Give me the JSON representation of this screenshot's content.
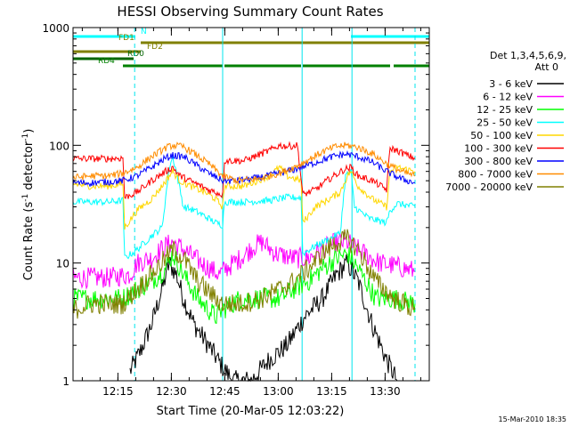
{
  "chart_data": {
    "type": "line",
    "title": "HESSI Observing Summary Count Rates",
    "xlabel": "Start Time (20-Mar-05 12:03:22)",
    "ylabel_main": "Count Rate (s",
    "ylabel_sup1": "-1",
    "ylabel_mid": " detector",
    "ylabel_sup2": "-1",
    "ylabel_end": ")",
    "yscale": "log",
    "ylim": [
      1,
      1000
    ],
    "xlim_minutes": [
      0,
      100
    ],
    "x_ticks": [
      {
        "t": 12.6,
        "label": "12:15"
      },
      {
        "t": 27.6,
        "label": "12:30"
      },
      {
        "t": 42.6,
        "label": "12:45"
      },
      {
        "t": 57.6,
        "label": "13:00"
      },
      {
        "t": 72.6,
        "label": "13:15"
      },
      {
        "t": 87.6,
        "label": "13:30"
      }
    ],
    "y_ticks": [
      {
        "v": 1,
        "label": "1"
      },
      {
        "v": 10,
        "label": "10"
      },
      {
        "v": 100,
        "label": "100"
      },
      {
        "v": 1000,
        "label": "1000"
      }
    ],
    "legend_header": [
      "Det 1,3,4,5,6,9,",
      "Att 0"
    ],
    "timestamp": "15-Mar-2010 18:35",
    "flag_bars": [
      {
        "name": "N",
        "color": "#00ffff",
        "segments": [
          [
            0,
            17.5
          ],
          [
            78,
            100
          ]
        ]
      },
      {
        "name": "FD1",
        "color": "#808000",
        "segments": [
          [
            19,
            100
          ]
        ]
      },
      {
        "name": "FD2",
        "color": "#808000",
        "segments": [
          [
            0,
            19
          ]
        ]
      },
      {
        "name": "RD0",
        "color": "#006400",
        "segments": [
          [
            0,
            17
          ]
        ]
      },
      {
        "name": "RD4",
        "color": "#008000",
        "segments": [
          [
            14,
            42
          ],
          [
            42.5,
            64
          ],
          [
            64.5,
            89
          ],
          [
            90,
            100
          ]
        ]
      }
    ],
    "orbit_lines": [
      {
        "t": 0,
        "style": "solid"
      },
      {
        "t": 17.3,
        "style": "dashed"
      },
      {
        "t": 42,
        "style": "solid"
      },
      {
        "t": 64.3,
        "style": "solid"
      },
      {
        "t": 78.3,
        "style": "solid"
      },
      {
        "t": 96,
        "style": "dashed"
      }
    ],
    "series": [
      {
        "name": "3 - 6 keV",
        "color": "#000000",
        "points": [
          [
            16,
            1.2
          ],
          [
            19,
            1.8
          ],
          [
            22,
            3
          ],
          [
            25,
            6
          ],
          [
            27,
            10
          ],
          [
            29,
            8
          ],
          [
            31,
            5
          ],
          [
            34,
            3
          ],
          [
            38,
            2
          ],
          [
            42,
            1.3
          ],
          [
            45,
            1
          ],
          [
            50,
            1
          ],
          [
            55,
            1.5
          ],
          [
            60,
            2
          ],
          [
            65,
            3.5
          ],
          [
            70,
            5
          ],
          [
            74,
            8
          ],
          [
            77,
            10
          ],
          [
            80,
            7
          ],
          [
            84,
            3
          ],
          [
            88,
            1.5
          ],
          [
            91,
            1
          ]
        ]
      },
      {
        "name": "6 - 12 keV",
        "color": "#ff00ff",
        "points": [
          [
            0,
            7.5
          ],
          [
            5,
            7.5
          ],
          [
            10,
            7.5
          ],
          [
            16,
            8
          ],
          [
            18,
            10
          ],
          [
            22,
            11
          ],
          [
            26,
            14
          ],
          [
            28,
            15
          ],
          [
            31,
            13
          ],
          [
            36,
            10
          ],
          [
            41,
            8
          ],
          [
            43,
            9
          ],
          [
            47,
            11
          ],
          [
            51,
            14
          ],
          [
            53,
            15
          ],
          [
            57,
            12
          ],
          [
            62,
            11
          ],
          [
            66,
            11
          ],
          [
            70,
            13
          ],
          [
            74,
            15
          ],
          [
            77,
            15
          ],
          [
            80,
            13
          ],
          [
            86,
            10
          ],
          [
            90,
            9.5
          ],
          [
            93,
            9
          ],
          [
            96,
            8.5
          ]
        ]
      },
      {
        "name": "12 - 25 keV",
        "color": "#00ff00",
        "points": [
          [
            0,
            5
          ],
          [
            5,
            5
          ],
          [
            10,
            5
          ],
          [
            14,
            5
          ],
          [
            18,
            6
          ],
          [
            22,
            7
          ],
          [
            26,
            9
          ],
          [
            28,
            12
          ],
          [
            31,
            8
          ],
          [
            35,
            5
          ],
          [
            40,
            3.5
          ],
          [
            42,
            4
          ],
          [
            47,
            5
          ],
          [
            53,
            5
          ],
          [
            58,
            5
          ],
          [
            62,
            6
          ],
          [
            66,
            7
          ],
          [
            70,
            9
          ],
          [
            74,
            11
          ],
          [
            77,
            12
          ],
          [
            80,
            9
          ],
          [
            85,
            5
          ],
          [
            90,
            5
          ],
          [
            96,
            4.5
          ]
        ]
      },
      {
        "name": "25 - 50 keV",
        "color": "#00ffff",
        "points": [
          [
            0,
            33
          ],
          [
            5,
            33
          ],
          [
            10,
            33
          ],
          [
            14,
            34
          ],
          [
            14.5,
            11
          ],
          [
            18,
            13
          ],
          [
            22,
            17
          ],
          [
            25,
            20
          ],
          [
            27,
            65
          ],
          [
            28,
            80
          ],
          [
            29,
            60
          ],
          [
            31,
            30
          ],
          [
            34,
            28
          ],
          [
            37,
            25
          ],
          [
            40,
            22
          ],
          [
            42,
            21
          ],
          [
            42.5,
            33
          ],
          [
            48,
            33
          ],
          [
            55,
            34
          ],
          [
            60,
            36
          ],
          [
            64,
            36
          ],
          [
            64.5,
            12
          ],
          [
            68,
            14
          ],
          [
            72,
            16
          ],
          [
            75,
            18
          ],
          [
            76.5,
            55
          ],
          [
            78,
            60
          ],
          [
            79,
            30
          ],
          [
            83,
            24
          ],
          [
            88,
            22
          ],
          [
            89,
            28
          ],
          [
            91,
            32
          ],
          [
            96,
            30
          ]
        ]
      },
      {
        "name": "50 - 100 keV",
        "color": "#ffd700",
        "points": [
          [
            0,
            47
          ],
          [
            5,
            45
          ],
          [
            10,
            45
          ],
          [
            14,
            47
          ],
          [
            14.5,
            20
          ],
          [
            18,
            28
          ],
          [
            22,
            35
          ],
          [
            25,
            45
          ],
          [
            27,
            55
          ],
          [
            28,
            60
          ],
          [
            30,
            50
          ],
          [
            33,
            45
          ],
          [
            37,
            40
          ],
          [
            40,
            35
          ],
          [
            42,
            30
          ],
          [
            42.5,
            45
          ],
          [
            48,
            45
          ],
          [
            55,
            55
          ],
          [
            58,
            65
          ],
          [
            60,
            55
          ],
          [
            64,
            50
          ],
          [
            64.5,
            22
          ],
          [
            68,
            30
          ],
          [
            72,
            35
          ],
          [
            75,
            40
          ],
          [
            77,
            55
          ],
          [
            78,
            60
          ],
          [
            80,
            45
          ],
          [
            84,
            35
          ],
          [
            88,
            30
          ],
          [
            89,
            60
          ],
          [
            91,
            65
          ],
          [
            96,
            60
          ]
        ]
      },
      {
        "name": "100 - 300 keV",
        "color": "#ff0000",
        "points": [
          [
            0,
            77
          ],
          [
            5,
            77
          ],
          [
            10,
            77
          ],
          [
            14,
            78
          ],
          [
            14.5,
            36
          ],
          [
            18,
            40
          ],
          [
            22,
            50
          ],
          [
            26,
            60
          ],
          [
            28,
            65
          ],
          [
            30,
            55
          ],
          [
            34,
            48
          ],
          [
            38,
            42
          ],
          [
            42,
            38
          ],
          [
            42.5,
            74
          ],
          [
            48,
            74
          ],
          [
            55,
            90
          ],
          [
            58,
            100
          ],
          [
            60,
            98
          ],
          [
            63,
            100
          ],
          [
            64.5,
            38
          ],
          [
            68,
            42
          ],
          [
            72,
            52
          ],
          [
            76,
            62
          ],
          [
            78,
            65
          ],
          [
            80,
            55
          ],
          [
            84,
            50
          ],
          [
            88,
            42
          ],
          [
            89,
            95
          ],
          [
            91,
            90
          ],
          [
            96,
            77
          ]
        ]
      },
      {
        "name": "300 - 800 keV",
        "color": "#0000ff",
        "points": [
          [
            0,
            48
          ],
          [
            5,
            48
          ],
          [
            10,
            49
          ],
          [
            14,
            50
          ],
          [
            18,
            55
          ],
          [
            22,
            65
          ],
          [
            26,
            78
          ],
          [
            28,
            82
          ],
          [
            31,
            80
          ],
          [
            34,
            70
          ],
          [
            38,
            58
          ],
          [
            42,
            50
          ],
          [
            46,
            50
          ],
          [
            52,
            53
          ],
          [
            58,
            58
          ],
          [
            62,
            62
          ],
          [
            66,
            68
          ],
          [
            70,
            75
          ],
          [
            74,
            82
          ],
          [
            77,
            84
          ],
          [
            80,
            80
          ],
          [
            84,
            72
          ],
          [
            88,
            60
          ],
          [
            92,
            52
          ],
          [
            96,
            48
          ]
        ]
      },
      {
        "name": "800 - 7000 keV",
        "color": "#ff8c00",
        "points": [
          [
            0,
            53
          ],
          [
            5,
            55
          ],
          [
            10,
            55
          ],
          [
            14,
            58
          ],
          [
            18,
            65
          ],
          [
            22,
            80
          ],
          [
            26,
            95
          ],
          [
            28,
            100
          ],
          [
            31,
            97
          ],
          [
            34,
            85
          ],
          [
            38,
            70
          ],
          [
            42,
            55
          ],
          [
            46,
            50
          ],
          [
            52,
            52
          ],
          [
            58,
            58
          ],
          [
            62,
            65
          ],
          [
            66,
            75
          ],
          [
            70,
            88
          ],
          [
            74,
            98
          ],
          [
            77,
            100
          ],
          [
            80,
            96
          ],
          [
            84,
            85
          ],
          [
            88,
            70
          ],
          [
            92,
            60
          ],
          [
            96,
            55
          ]
        ]
      },
      {
        "name": "7000 - 20000 keV",
        "color": "#808000",
        "points": [
          [
            0,
            4
          ],
          [
            5,
            4.5
          ],
          [
            10,
            4.5
          ],
          [
            14,
            4.5
          ],
          [
            18,
            6
          ],
          [
            22,
            8
          ],
          [
            26,
            11
          ],
          [
            28,
            13
          ],
          [
            31,
            11
          ],
          [
            35,
            7
          ],
          [
            40,
            5
          ],
          [
            42,
            4.5
          ],
          [
            47,
            4.5
          ],
          [
            53,
            5
          ],
          [
            58,
            6
          ],
          [
            62,
            7
          ],
          [
            66,
            9
          ],
          [
            70,
            12
          ],
          [
            74,
            15
          ],
          [
            77,
            16
          ],
          [
            80,
            13
          ],
          [
            85,
            7
          ],
          [
            90,
            5
          ],
          [
            96,
            4
          ]
        ]
      }
    ]
  }
}
